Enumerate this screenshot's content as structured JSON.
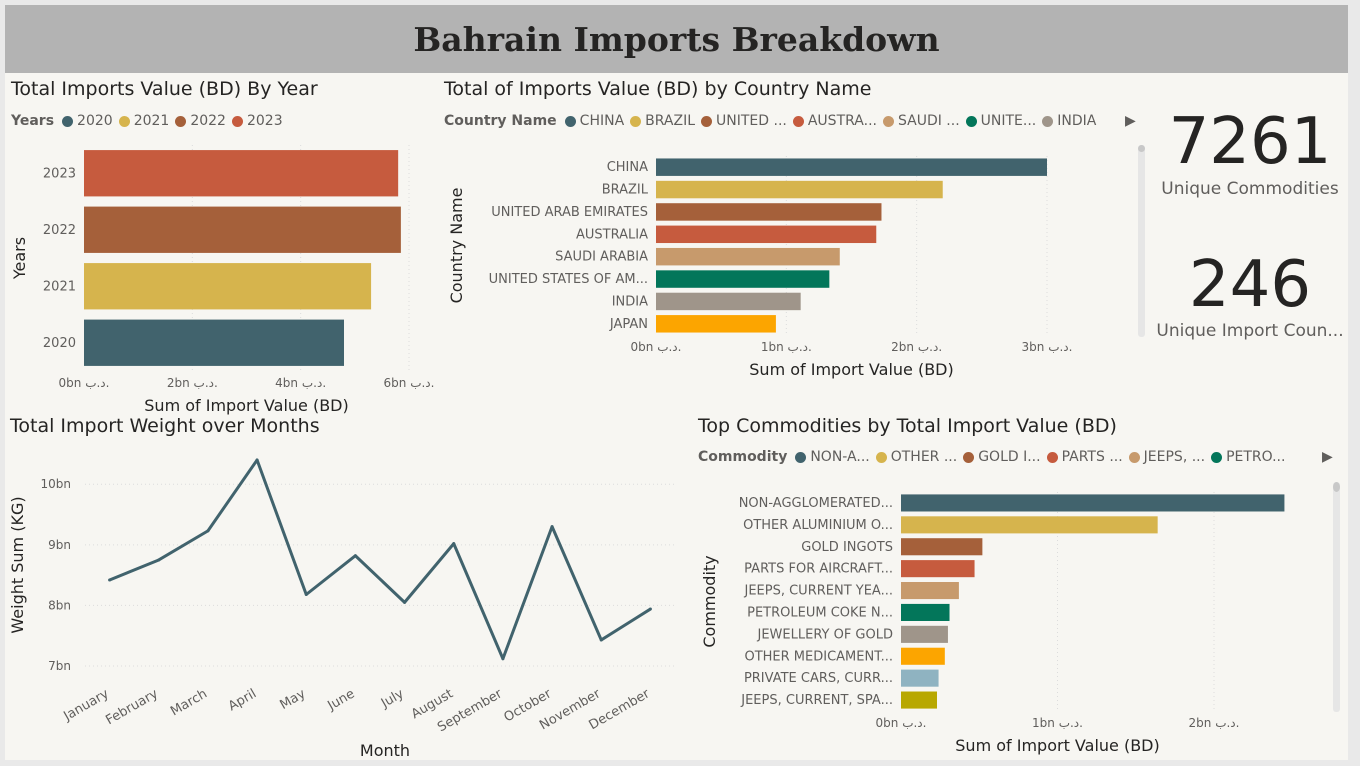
{
  "page_title": "Bahrain Imports Breakdown",
  "colors": {
    "c1": "#41636d",
    "c2": "#d6b44d",
    "c3": "#a5603a",
    "c4": "#c65b3e",
    "c5": "#c79a6c",
    "c6": "#03765a",
    "c7": "#9f958a",
    "c8": "#fca500",
    "c9": "#8fb3c1",
    "c10": "#b8a800"
  },
  "cards": [
    {
      "value": "7261",
      "label": "Unique Commodities"
    },
    {
      "value": "246",
      "label": "Unique Import Coun..."
    }
  ],
  "chart_data": [
    {
      "type": "bar",
      "orientation": "horizontal",
      "title": "Total Imports Value (BD) By Year",
      "legend_title": "Years",
      "legend": [
        "2020",
        "2021",
        "2022",
        "2023"
      ],
      "categories": [
        "2023",
        "2022",
        "2021",
        "2020"
      ],
      "values": [
        5.8,
        5.85,
        5.3,
        4.8
      ],
      "colors": [
        "#c65b3e",
        "#a5603a",
        "#d6b44d",
        "#41636d"
      ],
      "xlabel": "Sum of Import Value (BD)",
      "ylabel": "Years",
      "xlim": [
        0,
        6
      ],
      "xticks": [
        0,
        2,
        4,
        6
      ],
      "xtick_labels": [
        "0bn د.ب.",
        "2bn د.ب.",
        "4bn د.ب.",
        "6bn د.ب."
      ],
      "unit": "bn"
    },
    {
      "type": "bar",
      "orientation": "horizontal",
      "title": "Total of Imports Value (BD) by Country Name",
      "legend_title": "Country Name",
      "legend": [
        "CHINA",
        "BRAZIL",
        "UNITED ...",
        "AUSTRA...",
        "SAUDI ...",
        "UNITE...",
        "INDIA"
      ],
      "categories": [
        "CHINA",
        "BRAZIL",
        "UNITED ARAB EMIRATES",
        "AUSTRALIA",
        "SAUDI ARABIA",
        "UNITED STATES OF AM...",
        "INDIA",
        "JAPAN"
      ],
      "values": [
        3.0,
        2.2,
        1.73,
        1.69,
        1.41,
        1.33,
        1.11,
        0.92
      ],
      "colors": [
        "#41636d",
        "#d6b44d",
        "#a5603a",
        "#c65b3e",
        "#c79a6c",
        "#03765a",
        "#9f958a",
        "#fca500"
      ],
      "xlabel": "Sum of Import Value (BD)",
      "ylabel": "Country Name",
      "xlim": [
        0,
        3
      ],
      "xticks": [
        0,
        1,
        2,
        3
      ],
      "xtick_labels": [
        "0bn د.ب.",
        "1bn د.ب.",
        "2bn د.ب.",
        "3bn د.ب."
      ],
      "unit": "bn"
    },
    {
      "type": "line",
      "title": "Total Import Weight over Months",
      "categories": [
        "January",
        "February",
        "March",
        "April",
        "May",
        "June",
        "July",
        "August",
        "September",
        "October",
        "November",
        "December"
      ],
      "values": [
        8.42,
        8.75,
        9.23,
        10.4,
        8.18,
        8.82,
        8.05,
        9.02,
        7.12,
        9.3,
        7.43,
        7.94
      ],
      "color": "#41636d",
      "xlabel": "Month",
      "ylabel": "Weight Sum (KG)",
      "ylim": [
        7,
        10.4
      ],
      "yticks": [
        7,
        8,
        9,
        10
      ],
      "ytick_labels": [
        "7bn",
        "8bn",
        "9bn",
        "10bn"
      ],
      "unit": "bn"
    },
    {
      "type": "bar",
      "orientation": "horizontal",
      "title": "Top Commodities by Total Import Value (BD)",
      "legend_title": "Commodity",
      "legend": [
        "NON-A...",
        "OTHER ...",
        "GOLD I...",
        "PARTS ...",
        "JEEPS, ...",
        "PETRO..."
      ],
      "categories": [
        "NON-AGGLOMERATED...",
        "OTHER ALUMINIUM O...",
        "GOLD INGOTS",
        "PARTS FOR AIRCRAFT...",
        "JEEPS, CURRENT YEA...",
        "PETROLEUM COKE N...",
        "JEWELLERY OF GOLD",
        "OTHER MEDICAMENT...",
        "PRIVATE CARS, CURR...",
        "JEEPS, CURRENT, SPA..."
      ],
      "values": [
        2.45,
        1.64,
        0.52,
        0.47,
        0.37,
        0.31,
        0.3,
        0.28,
        0.24,
        0.23
      ],
      "colors": [
        "#41636d",
        "#d6b44d",
        "#a5603a",
        "#c65b3e",
        "#c79a6c",
        "#03765a",
        "#9f958a",
        "#fca500",
        "#8fb3c1",
        "#b8a800"
      ],
      "xlabel": "Sum of Import Value (BD)",
      "ylabel": "Commodity",
      "xlim": [
        0,
        2
      ],
      "xticks": [
        0,
        1,
        2
      ],
      "xtick_labels": [
        "0bn د.ب.",
        "1bn د.ب.",
        "2bn د.ب."
      ],
      "unit": "bn"
    }
  ]
}
